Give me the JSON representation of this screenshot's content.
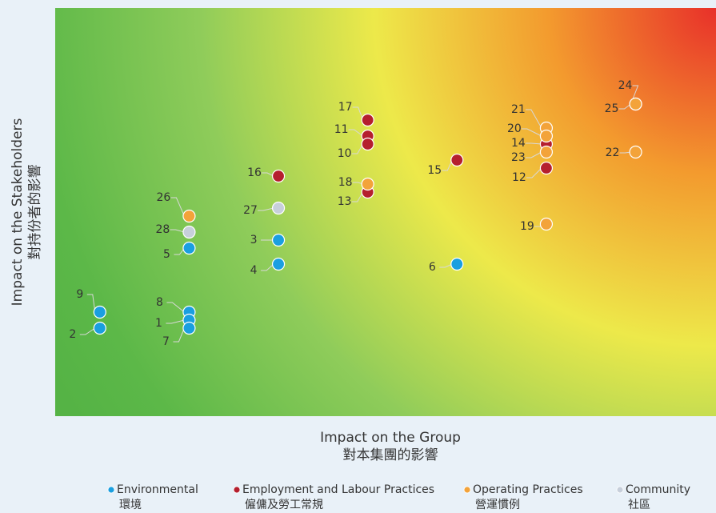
{
  "chart_data": {
    "type": "scatter",
    "x_label": "Impact on the Group",
    "x_label_zh": "對本集團的影響",
    "y_label": "Impact on the Stakeholders",
    "y_label_zh": "對持份者的影響",
    "xlim": [
      0,
      7.4
    ],
    "ylim": [
      0,
      51
    ],
    "series": [
      {
        "name": "Environmental",
        "name_zh": "環境",
        "color": "#1a9fe0",
        "ids": [
          9,
          2,
          8,
          1,
          7,
          5,
          3,
          4,
          6
        ],
        "x": [
          0.5,
          0.5,
          1.5,
          1.5,
          1.5,
          1.5,
          2.5,
          2.5,
          4.5
        ],
        "values": [
          13,
          11,
          13,
          12,
          11,
          21,
          22,
          19,
          19
        ]
      },
      {
        "name": "Employment and Labour Practices",
        "name_zh": "僱傭及勞工常規",
        "color": "#b51f2e",
        "ids": [
          16,
          17,
          11,
          10,
          13,
          15,
          14,
          12
        ],
        "x": [
          2.5,
          3.5,
          3.5,
          3.5,
          3.5,
          4.5,
          5.5,
          5.5
        ],
        "values": [
          30,
          37,
          35,
          34,
          28,
          32,
          34,
          31
        ]
      },
      {
        "name": "Operating Practices",
        "name_zh": "營運慣例",
        "color": "#f3a33a",
        "ids": [
          26,
          18,
          21,
          20,
          23,
          19,
          24,
          25,
          22
        ],
        "x": [
          1.5,
          3.5,
          5.5,
          5.5,
          5.5,
          5.5,
          6.5,
          6.5,
          6.5
        ],
        "values": [
          25,
          29,
          36,
          35,
          33,
          24,
          39,
          39,
          33
        ]
      },
      {
        "name": "Community",
        "name_zh": "社區",
        "color": "#c7cfdb",
        "ids": [
          28,
          27
        ],
        "x": [
          1.5,
          2.5
        ],
        "values": [
          23,
          26
        ]
      }
    ]
  }
}
